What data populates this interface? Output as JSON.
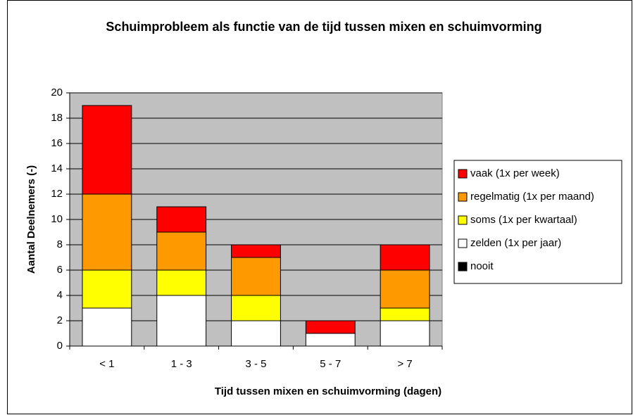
{
  "chart_data": {
    "type": "stacked_bar",
    "title": "Schuimprobleem als functie van de tijd tussen mixen en schuimvorming",
    "x_label": "Tijd tussen mixen en schuimvorming (dagen)",
    "y_label": "Aantal Deelnemers (-)",
    "categories": [
      "< 1",
      "1 - 3",
      "3 - 5",
      "5 - 7",
      "> 7"
    ],
    "series": [
      {
        "name": "vaak (1x per week)",
        "color": "#ff0000",
        "values": [
          7,
          2,
          1,
          1,
          2
        ]
      },
      {
        "name": "regelmatig (1x per maand)",
        "color": "#ff9900",
        "values": [
          6,
          3,
          3,
          0,
          3
        ]
      },
      {
        "name": "soms (1x per kwartaal)",
        "color": "#ffff00",
        "values": [
          3,
          2,
          2,
          0,
          1
        ]
      },
      {
        "name": "zelden (1x per jaar)",
        "color": "#ffffff",
        "values": [
          3,
          4,
          2,
          1,
          2
        ]
      },
      {
        "name": "nooit",
        "color": "#000000",
        "values": [
          0,
          0,
          0,
          0,
          0
        ]
      }
    ],
    "ylim": [
      0,
      20
    ],
    "yticks": [
      0,
      2,
      4,
      6,
      8,
      10,
      12,
      14,
      16,
      18,
      20
    ],
    "grid": true,
    "legend": "right",
    "plot_background": "#c0c0c0"
  }
}
